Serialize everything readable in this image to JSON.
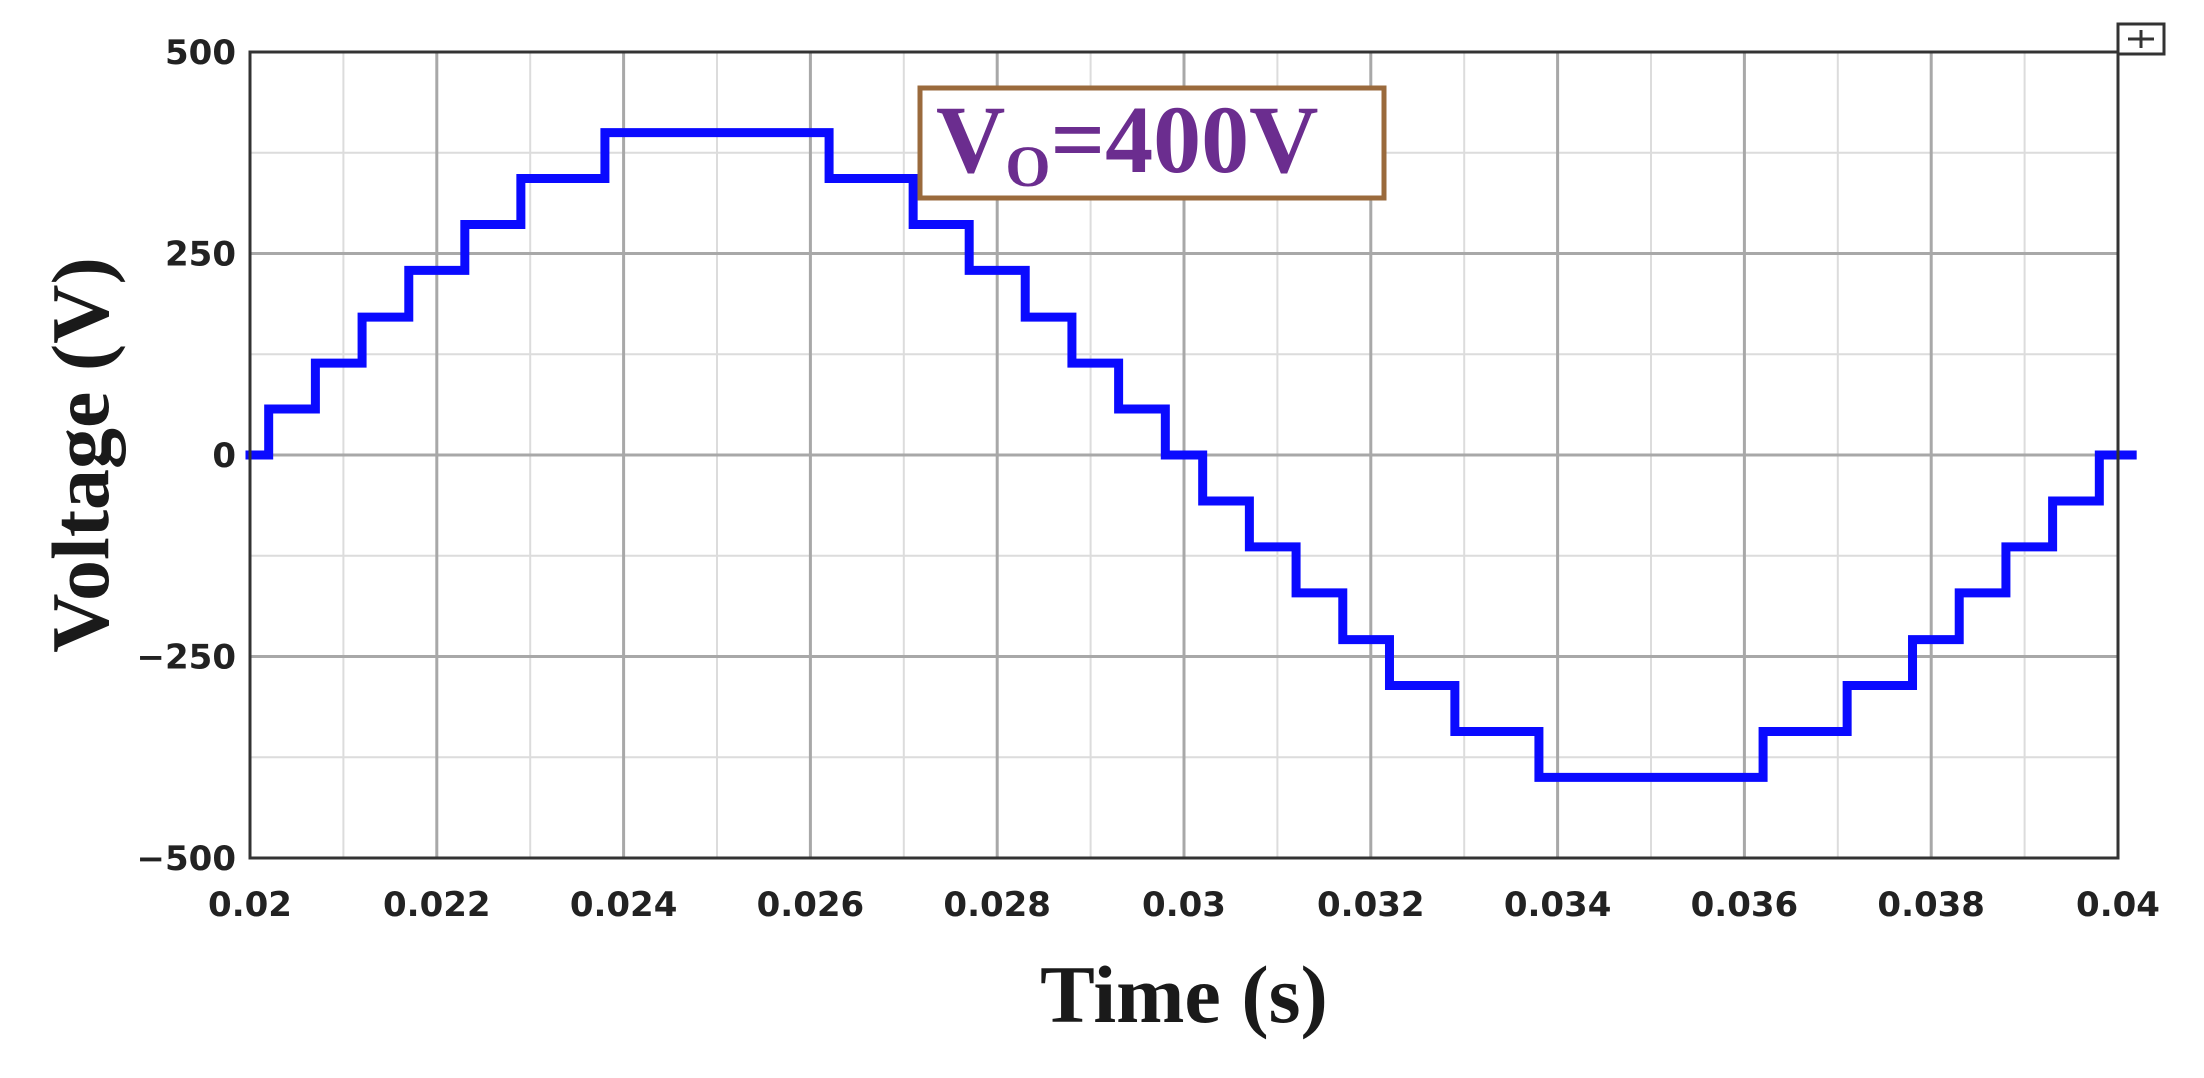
{
  "chart_data": {
    "type": "line",
    "title": "",
    "xlabel": "Time (s)",
    "ylabel": "Voltage (V)",
    "xlim": [
      0.02,
      0.04
    ],
    "ylim": [
      -500,
      500
    ],
    "x_ticks": [
      0.02,
      0.022,
      0.024,
      0.026,
      0.028,
      0.03,
      0.032,
      0.034,
      0.036,
      0.038,
      0.04
    ],
    "x_tick_labels": [
      "0.02",
      "0.022",
      "0.024",
      "0.026",
      "0.028",
      "0.03",
      "0.032",
      "0.034",
      "0.036",
      "0.038",
      "0.04"
    ],
    "y_ticks": [
      500,
      250,
      0,
      -250,
      -500
    ],
    "y_tick_labels": [
      "500",
      "250",
      "0",
      "−250",
      "−500"
    ],
    "minor_x_grid": [
      0.021,
      0.023,
      0.025,
      0.027,
      0.029,
      0.031,
      0.033,
      0.035,
      0.037,
      0.039
    ],
    "minor_y_grid": [
      375,
      125,
      -125,
      -375
    ],
    "grid": true,
    "legend": "none",
    "line_color": "#0a0aff",
    "annotation": {
      "main": "V",
      "subscript": "O",
      "rest": "=400V",
      "text_color": "#6b2d8f",
      "border_color": "#9a6a3c"
    },
    "series": [
      {
        "step": true,
        "x": [
          0.02,
          0.0202,
          0.0207,
          0.0212,
          0.0217,
          0.0223,
          0.0229,
          0.0238,
          0.0262,
          0.0271,
          0.0277,
          0.0283,
          0.0288,
          0.0293,
          0.0298,
          0.0302,
          0.0307,
          0.0312,
          0.0317,
          0.0322,
          0.0329,
          0.0338,
          0.0362,
          0.0371,
          0.0378,
          0.0383,
          0.0388,
          0.0393,
          0.0398,
          0.0402
        ],
        "y": [
          0,
          57,
          114,
          171,
          229,
          286,
          343,
          400,
          343,
          286,
          229,
          171,
          114,
          57,
          0,
          -57,
          -114,
          -171,
          -229,
          -286,
          -343,
          -400,
          -343,
          -286,
          -229,
          -171,
          -114,
          -57,
          0,
          0
        ]
      }
    ]
  }
}
